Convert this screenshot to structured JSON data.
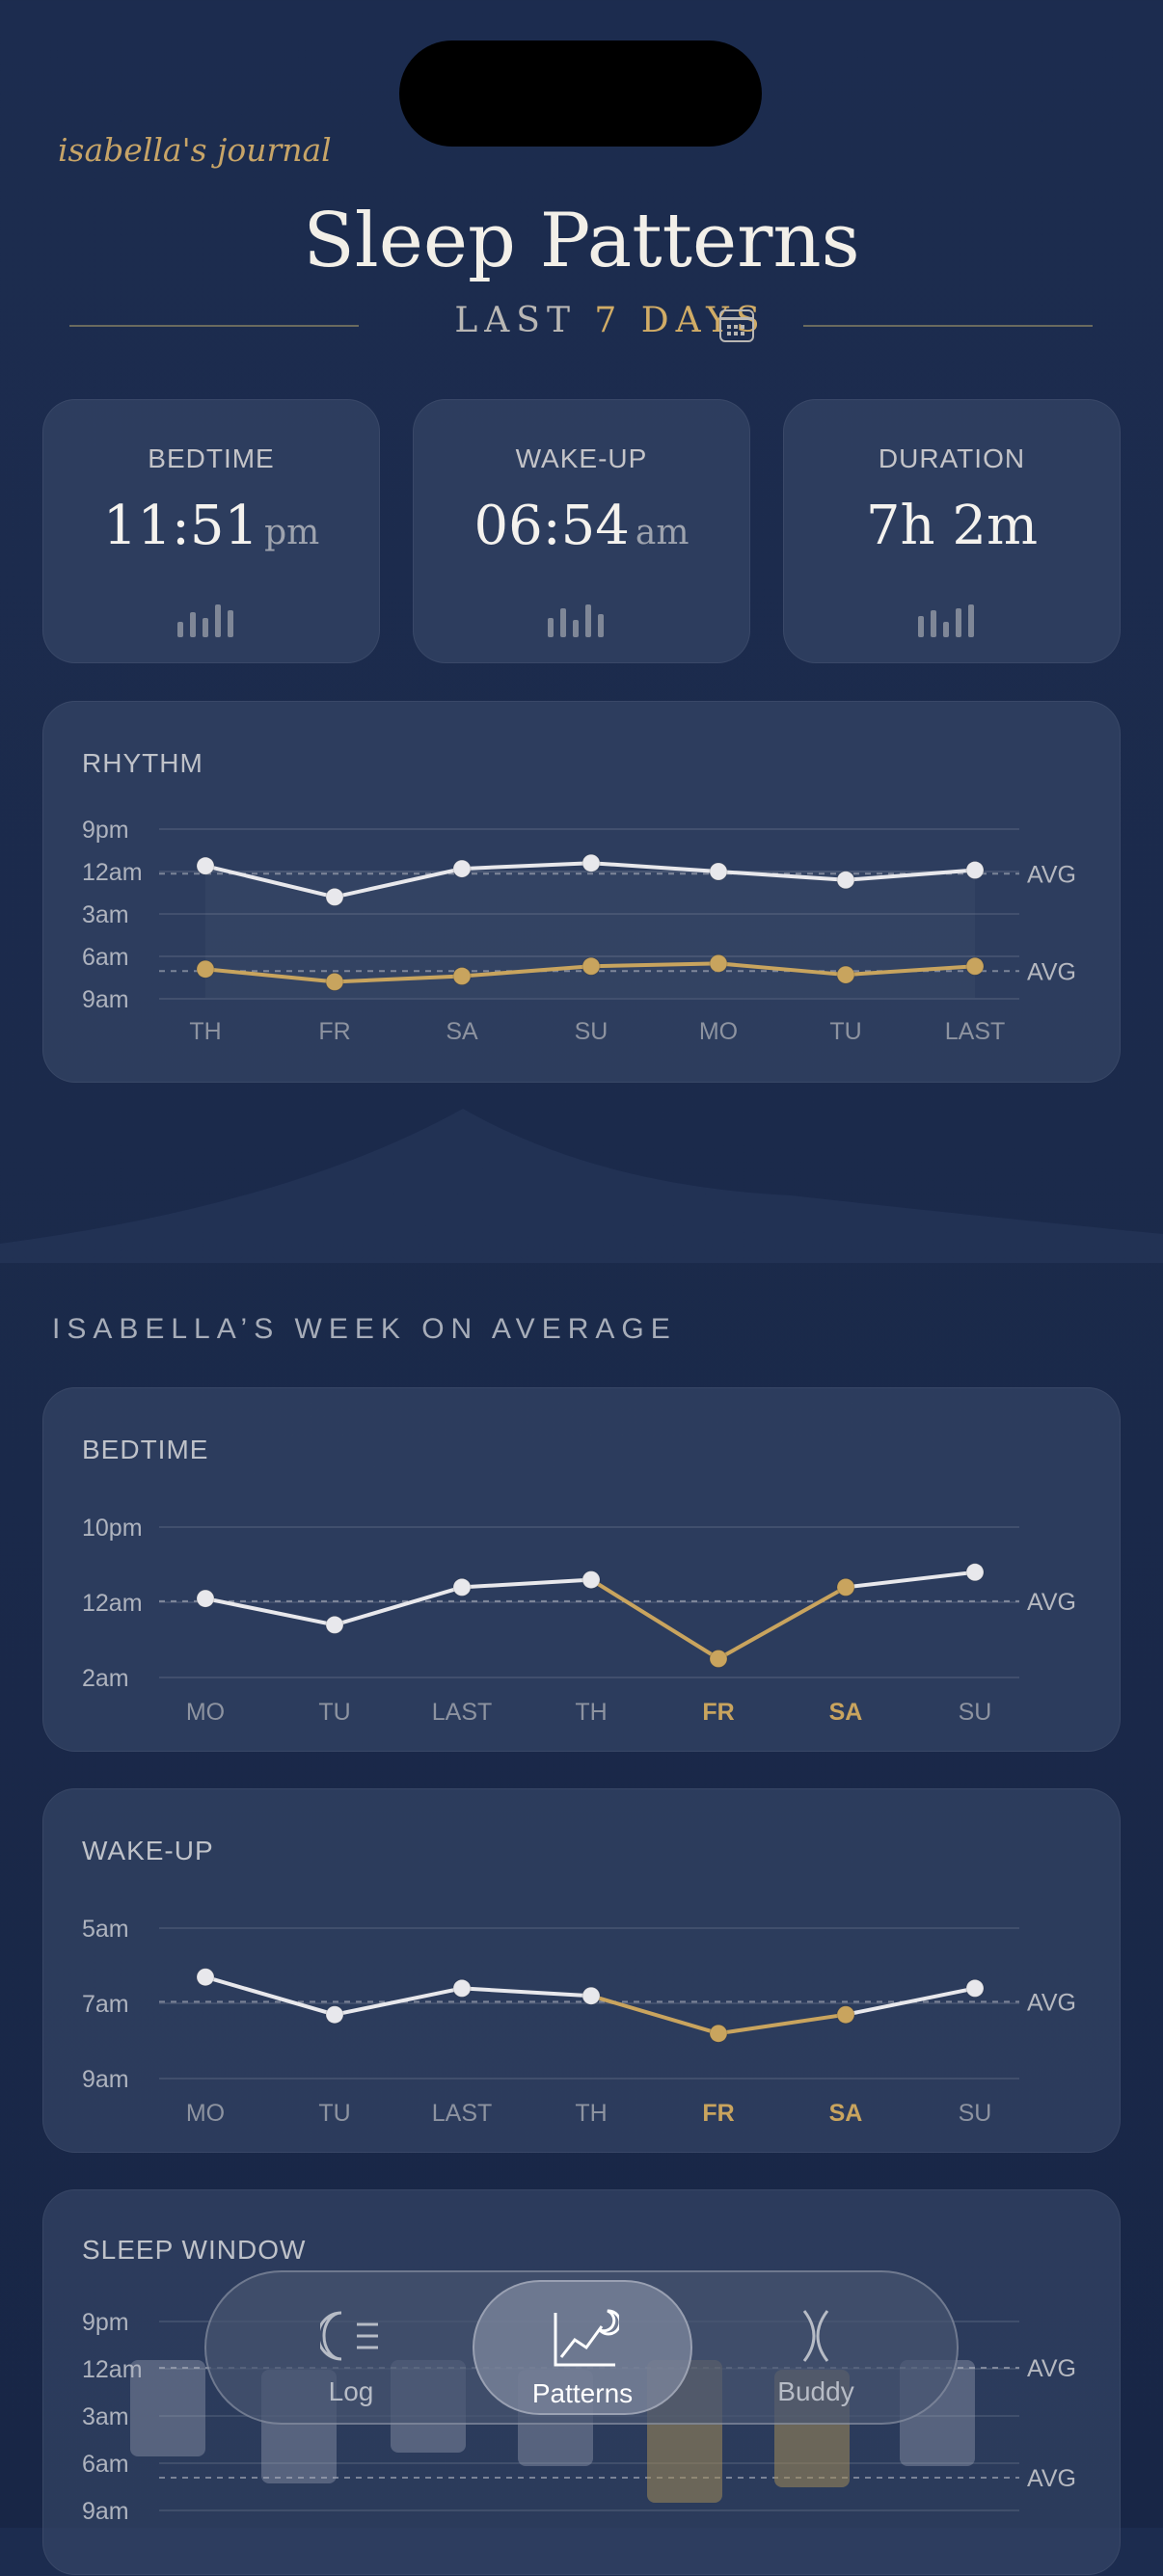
{
  "header": {
    "journal": "isabella's journal",
    "title": "Sleep Patterns",
    "subtitle_prefix": "LAST",
    "subtitle_highlight": "7 DAYS"
  },
  "stats": [
    {
      "label": "BEDTIME",
      "value": "11:51",
      "unit": "pm"
    },
    {
      "label": "WAKE-UP",
      "value": "06:54",
      "unit": "am"
    },
    {
      "label": "DURATION",
      "value": "7h 2m",
      "unit": ""
    }
  ],
  "rhythm": {
    "title": "RHYTHM",
    "y_ticks": [
      "9pm",
      "12am",
      "3am",
      "6am",
      "9am"
    ],
    "categories": [
      "TH",
      "FR",
      "SA",
      "SU",
      "MO",
      "TU",
      "LAST"
    ],
    "bedtime_hours": [
      23.6,
      1.8,
      23.8,
      23.4,
      0.0,
      0.6,
      23.9
    ],
    "wake_hours": [
      6.9,
      7.8,
      7.4,
      6.7,
      6.5,
      7.3,
      6.7
    ],
    "avg_label": "AVG",
    "colors": {
      "bed": "#e8e8ec",
      "wake": "#c8a45e"
    }
  },
  "week_label": "ISABELLA’S WEEK ON AVERAGE",
  "week_bedtime": {
    "title": "BEDTIME",
    "y_ticks": [
      "10pm",
      "12am",
      "2am"
    ],
    "categories": [
      "MO",
      "TU",
      "LAST",
      "TH",
      "FR",
      "SA",
      "SU"
    ],
    "highlight": [
      "FR",
      "SA"
    ],
    "values": [
      23.9,
      0.6,
      23.6,
      23.4,
      1.5,
      23.6,
      23.2
    ],
    "avg_label": "AVG"
  },
  "week_wake": {
    "title": "WAKE-UP",
    "y_ticks": [
      "5am",
      "7am",
      "9am"
    ],
    "categories": [
      "MO",
      "TU",
      "LAST",
      "TH",
      "FR",
      "SA",
      "SU"
    ],
    "highlight": [
      "FR",
      "SA"
    ],
    "values": [
      6.3,
      7.3,
      6.6,
      6.8,
      7.8,
      7.3,
      6.6
    ],
    "avg_label": "AVG"
  },
  "sleep_window": {
    "title": "SLEEP WINDOW",
    "y_ticks": [
      "9pm",
      "12am",
      "3am",
      "6am",
      "9am"
    ],
    "avg_label": "AVG"
  },
  "tabs": [
    {
      "label": "Log",
      "icon": "moon-list-icon",
      "active": false
    },
    {
      "label": "Patterns",
      "icon": "chart-moon-icon",
      "active": true
    },
    {
      "label": "Buddy",
      "icon": "buddy-icon",
      "active": false
    }
  ]
}
